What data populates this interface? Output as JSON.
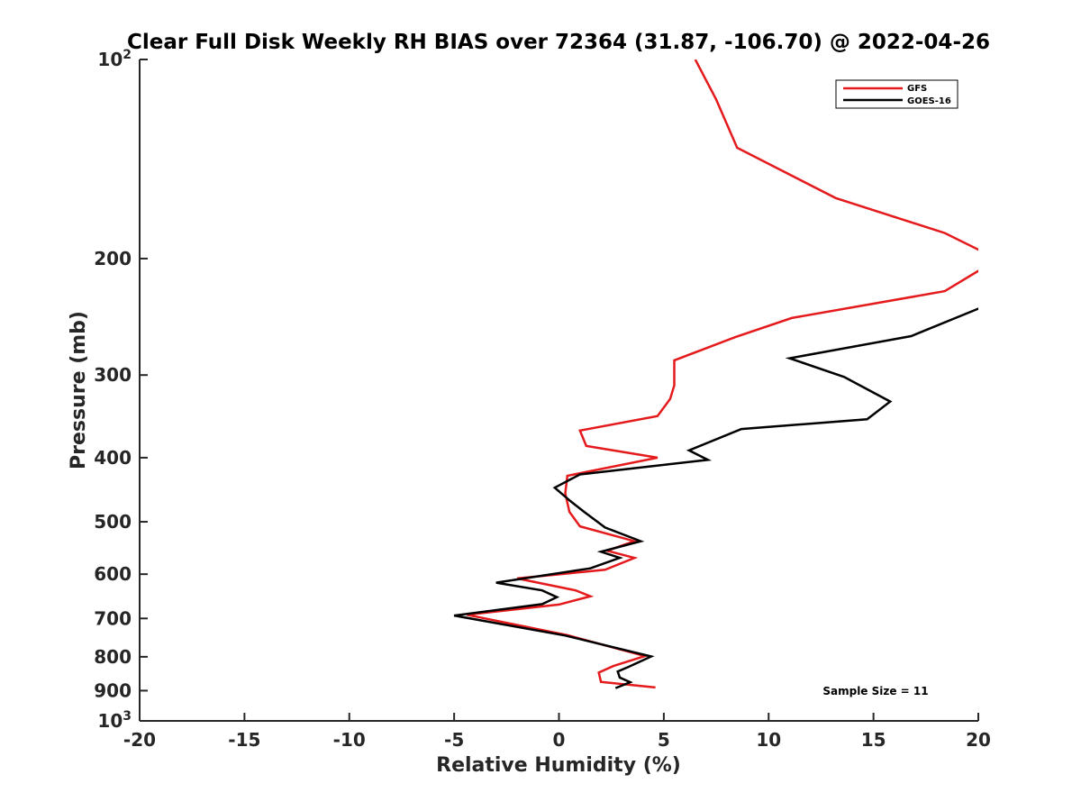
{
  "chart_data": {
    "type": "line",
    "title": "Clear Full Disk Weekly RH BIAS over 72364 (31.87, -106.70) @ 2022-04-26",
    "xlabel": "Relative Humidity (%)",
    "ylabel": "Pressure (mb)",
    "xlim": [
      -20,
      20
    ],
    "ylim": [
      100,
      1000
    ],
    "yscale": "log",
    "y_reversed": true,
    "grid": false,
    "legend_position": "top-right",
    "x_ticks": [
      -20,
      -15,
      -10,
      -5,
      0,
      5,
      10,
      15,
      20
    ],
    "x_tick_labels": [
      "-20",
      "-15",
      "-10",
      "-5",
      "0",
      "5",
      "10",
      "15",
      "20"
    ],
    "y_tick_labels": [
      {
        "value": 100,
        "base": "10",
        "exp": "2"
      },
      {
        "value": 200,
        "base": "200",
        "exp": ""
      },
      {
        "value": 300,
        "base": "300",
        "exp": ""
      },
      {
        "value": 400,
        "base": "400",
        "exp": ""
      },
      {
        "value": 500,
        "base": "500",
        "exp": ""
      },
      {
        "value": 600,
        "base": "600",
        "exp": ""
      },
      {
        "value": 700,
        "base": "700",
        "exp": ""
      },
      {
        "value": 800,
        "base": "800",
        "exp": ""
      },
      {
        "value": 900,
        "base": "900",
        "exp": ""
      },
      {
        "value": 1000,
        "base": "10",
        "exp": "3"
      }
    ],
    "series": [
      {
        "name": "GFS",
        "color": "#e41a1c",
        "points": [
          {
            "x": 6.5,
            "y": 100
          },
          {
            "x": 7.5,
            "y": 115
          },
          {
            "x": 8.5,
            "y": 136
          },
          {
            "x": 13.2,
            "y": 162
          },
          {
            "x": 18.4,
            "y": 183
          },
          {
            "x": 20.3,
            "y": 196
          },
          {
            "x": 20.3,
            "y": 206
          },
          {
            "x": 18.4,
            "y": 224
          },
          {
            "x": 11.1,
            "y": 246
          },
          {
            "x": 8.4,
            "y": 263
          },
          {
            "x": 5.5,
            "y": 285
          },
          {
            "x": 5.5,
            "y": 311
          },
          {
            "x": 5.3,
            "y": 326
          },
          {
            "x": 4.7,
            "y": 346
          },
          {
            "x": 1.0,
            "y": 364
          },
          {
            "x": 1.3,
            "y": 384
          },
          {
            "x": 4.7,
            "y": 400
          },
          {
            "x": 0.4,
            "y": 426
          },
          {
            "x": 0.3,
            "y": 453
          },
          {
            "x": 0.5,
            "y": 483
          },
          {
            "x": 1.0,
            "y": 508
          },
          {
            "x": 3.6,
            "y": 535
          },
          {
            "x": 2.3,
            "y": 553
          },
          {
            "x": 3.6,
            "y": 567
          },
          {
            "x": 2.2,
            "y": 591
          },
          {
            "x": -2.0,
            "y": 609
          },
          {
            "x": 0.8,
            "y": 635
          },
          {
            "x": 1.5,
            "y": 648
          },
          {
            "x": 0.0,
            "y": 667
          },
          {
            "x": -4.4,
            "y": 691
          },
          {
            "x": 0.4,
            "y": 742
          },
          {
            "x": 4.1,
            "y": 798
          },
          {
            "x": 2.6,
            "y": 826
          },
          {
            "x": 1.9,
            "y": 845
          },
          {
            "x": 2.0,
            "y": 873
          },
          {
            "x": 4.6,
            "y": 890
          }
        ]
      },
      {
        "name": "GOES-16",
        "color": "#000000",
        "points": [
          {
            "x": 20.3,
            "y": 236
          },
          {
            "x": 16.8,
            "y": 262
          },
          {
            "x": 11.0,
            "y": 283
          },
          {
            "x": 13.6,
            "y": 302
          },
          {
            "x": 15.8,
            "y": 329
          },
          {
            "x": 14.7,
            "y": 350
          },
          {
            "x": 8.7,
            "y": 362
          },
          {
            "x": 6.2,
            "y": 390
          },
          {
            "x": 7.1,
            "y": 403
          },
          {
            "x": 1.0,
            "y": 424
          },
          {
            "x": -0.2,
            "y": 444
          },
          {
            "x": 0.5,
            "y": 464
          },
          {
            "x": 1.2,
            "y": 483
          },
          {
            "x": 2.2,
            "y": 510
          },
          {
            "x": 3.9,
            "y": 535
          },
          {
            "x": 2.0,
            "y": 555
          },
          {
            "x": 2.9,
            "y": 567
          },
          {
            "x": 1.5,
            "y": 588
          },
          {
            "x": -3.0,
            "y": 618
          },
          {
            "x": -0.8,
            "y": 635
          },
          {
            "x": -0.1,
            "y": 650
          },
          {
            "x": -0.8,
            "y": 666
          },
          {
            "x": -5.0,
            "y": 693
          },
          {
            "x": 0.3,
            "y": 743
          },
          {
            "x": 4.4,
            "y": 799
          },
          {
            "x": 3.3,
            "y": 829
          },
          {
            "x": 2.8,
            "y": 842
          },
          {
            "x": 2.9,
            "y": 860
          },
          {
            "x": 3.4,
            "y": 874
          },
          {
            "x": 2.7,
            "y": 892
          }
        ]
      }
    ],
    "annotations": [
      {
        "text": "Sample Size = 11"
      }
    ]
  }
}
